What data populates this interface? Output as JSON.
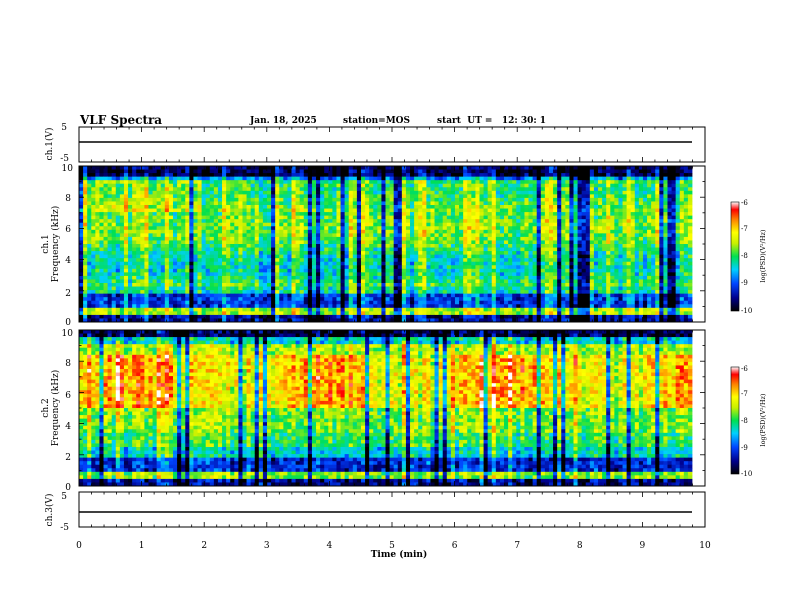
{
  "header": {
    "title": "VLF Spectra",
    "date": "Jan. 18, 2025",
    "station": "station=MOS",
    "start_ut": "start  UT =   12: 30: 1"
  },
  "chart_data": [
    {
      "type": "line",
      "panel": "ch1-waveform",
      "ylabel": "ch.1(V)",
      "ylim": [
        -5,
        5
      ],
      "yticks": [
        "5",
        "-5"
      ],
      "level_approx": 0
    },
    {
      "type": "heatmap",
      "panel": "ch1-spectrogram",
      "ylabel_line1": "ch.1",
      "ylabel_line2": "Frequency (kHz)",
      "ylim": [
        0,
        10
      ],
      "yticks": [
        "0",
        "2",
        "4",
        "6",
        "8",
        "10"
      ],
      "colorbar": {
        "label": "log(PSD)(V²/Hz)",
        "range": [
          -10,
          -6
        ],
        "ticks": [
          "-6",
          "-7",
          "-8",
          "-9",
          "-10"
        ]
      }
    },
    {
      "type": "heatmap",
      "panel": "ch2-spectrogram",
      "ylabel_line1": "ch.2",
      "ylabel_line2": "Frequency (kHz)",
      "ylim": [
        0,
        10
      ],
      "yticks": [
        "0",
        "2",
        "4",
        "6",
        "8",
        "10"
      ],
      "colorbar": {
        "label": "log(PSD)(V²/Hz)",
        "range": [
          -10,
          -6
        ],
        "ticks": [
          "-6",
          "-7",
          "-8",
          "-9",
          "-10"
        ]
      }
    },
    {
      "type": "line",
      "panel": "ch3-waveform",
      "ylabel": "ch.3(V)",
      "ylim": [
        -5,
        5
      ],
      "yticks": [
        "5",
        "-5"
      ],
      "level_approx": 0
    }
  ],
  "xaxis": {
    "label": "Time (min)",
    "range": [
      0,
      10
    ],
    "ticks": [
      "0",
      "1",
      "2",
      "3",
      "4",
      "5",
      "6",
      "7",
      "8",
      "9",
      "10"
    ]
  }
}
